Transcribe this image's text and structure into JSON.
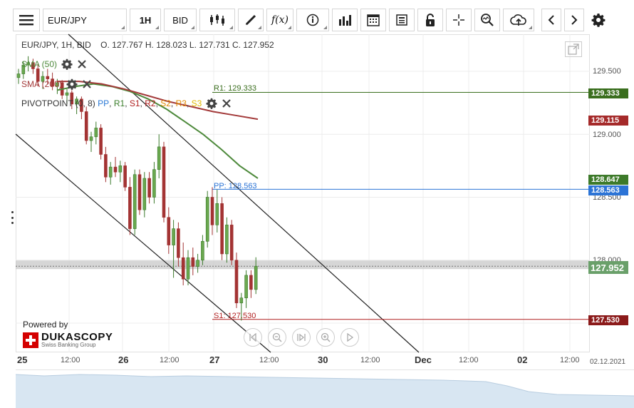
{
  "toolbar": {
    "menu_icon": "hamburger-icon",
    "symbol": "EUR/JPY",
    "timeframe": "1H",
    "price_side": "BID",
    "buttons": [
      "candle-type-icon",
      "pencil-icon",
      "function-icon",
      "info-icon",
      "volume-bars-icon",
      "calendar-icon",
      "report-icon",
      "unlock-icon",
      "crosshair-icon",
      "zoom-search-icon",
      "cloud-upload-icon",
      "chevron-left-icon",
      "chevron-right-icon",
      "gear-icon"
    ],
    "function_label": "f(x)"
  },
  "legend": {
    "ohlc": "EUR/JPY, 1H, BID    O. 127.767 H. 128.023 L. 127.731 C. 127.952",
    "sma50": "SMA (50)",
    "sma200": "SMA (200)",
    "pivot_prefix": "PIVOTPOINT (0, 8)",
    "pivot_items": [
      "PP",
      "R1",
      "S1",
      "R2",
      "S2",
      "R3",
      "S3"
    ]
  },
  "levels": {
    "r1": "R1: 129.333",
    "pp": "PP: 128.563",
    "s1": "S1: 127.530"
  },
  "price_axis": {
    "ticks": [
      "129.500",
      "129.000",
      "128.500",
      "128.000",
      "127.500"
    ],
    "tags": [
      {
        "value": "129.333",
        "color": "#3a6e1e"
      },
      {
        "value": "129.115",
        "color": "#a52a2a"
      },
      {
        "value": "128.647",
        "color": "#3d7a2a"
      },
      {
        "value": "128.563",
        "color": "#2c74d6"
      },
      {
        "value": "127.952",
        "color": "#6aa06a"
      },
      {
        "value": "127.530",
        "color": "#8b1a1a"
      }
    ]
  },
  "time_axis": {
    "labels": [
      "25",
      "12:00",
      "26",
      "12:00",
      "27",
      "12:00",
      "30",
      "12:00",
      "Dec",
      "12:00",
      "02",
      "12:00",
      "02.12.2021"
    ]
  },
  "branding": {
    "powered_by": "Powered by",
    "name": "DUKASCOPY",
    "tagline": "Swiss Banking Group"
  },
  "chart_data": {
    "type": "candlestick",
    "symbol": "EUR/JPY",
    "interval": "1H",
    "side": "BID",
    "ylim": [
      127.3,
      129.85
    ],
    "last": {
      "open": 127.767,
      "high": 128.023,
      "low": 127.731,
      "close": 127.952
    },
    "indicators": {
      "sma50": [
        129.35,
        129.38,
        129.4,
        129.38,
        129.34,
        129.28,
        129.2,
        129.1,
        129.0,
        128.88,
        128.75,
        128.65
      ],
      "sma200": [
        129.42,
        129.42,
        129.4,
        129.36,
        129.31,
        129.26,
        129.22,
        129.18,
        129.15,
        129.12
      ],
      "pivot": {
        "R1": 129.333,
        "PP": 128.563,
        "S1": 127.53
      }
    },
    "candles": [
      {
        "t": "25 08:00",
        "o": 129.45,
        "h": 129.52,
        "l": 129.4,
        "c": 129.48
      },
      {
        "t": "25 09:00",
        "o": 129.48,
        "h": 129.58,
        "l": 129.44,
        "c": 129.55
      },
      {
        "t": "25 10:00",
        "o": 129.55,
        "h": 129.62,
        "l": 129.5,
        "c": 129.57
      },
      {
        "t": "25 11:00",
        "o": 129.57,
        "h": 129.6,
        "l": 129.48,
        "c": 129.52
      },
      {
        "t": "25 12:00",
        "o": 129.52,
        "h": 129.56,
        "l": 129.38,
        "c": 129.42
      },
      {
        "t": "25 13:00",
        "o": 129.42,
        "h": 129.5,
        "l": 129.36,
        "c": 129.46
      },
      {
        "t": "25 14:00",
        "o": 129.46,
        "h": 129.52,
        "l": 129.4,
        "c": 129.44
      },
      {
        "t": "25 15:00",
        "o": 129.44,
        "h": 129.49,
        "l": 129.35,
        "c": 129.38
      },
      {
        "t": "25 16:00",
        "o": 129.38,
        "h": 129.44,
        "l": 129.32,
        "c": 129.41
      },
      {
        "t": "25 17:00",
        "o": 129.41,
        "h": 129.43,
        "l": 129.28,
        "c": 129.31
      },
      {
        "t": "25 18:00",
        "o": 129.31,
        "h": 129.36,
        "l": 129.24,
        "c": 129.33
      },
      {
        "t": "25 19:00",
        "o": 129.33,
        "h": 129.35,
        "l": 129.2,
        "c": 129.24
      },
      {
        "t": "25 20:00",
        "o": 129.24,
        "h": 129.3,
        "l": 129.16,
        "c": 129.28
      },
      {
        "t": "25 21:00",
        "o": 129.28,
        "h": 129.3,
        "l": 129.12,
        "c": 129.18
      },
      {
        "t": "25 22:00",
        "o": 129.18,
        "h": 129.22,
        "l": 128.92,
        "c": 128.95
      },
      {
        "t": "25 23:00",
        "o": 128.95,
        "h": 129.02,
        "l": 128.86,
        "c": 128.98
      },
      {
        "t": "26 00:00",
        "o": 128.98,
        "h": 129.1,
        "l": 128.92,
        "c": 129.05
      },
      {
        "t": "26 01:00",
        "o": 129.05,
        "h": 129.08,
        "l": 128.8,
        "c": 128.84
      },
      {
        "t": "26 02:00",
        "o": 128.84,
        "h": 128.9,
        "l": 128.62,
        "c": 128.66
      },
      {
        "t": "26 03:00",
        "o": 128.66,
        "h": 128.78,
        "l": 128.6,
        "c": 128.74
      },
      {
        "t": "26 04:00",
        "o": 128.74,
        "h": 128.82,
        "l": 128.66,
        "c": 128.7
      },
      {
        "t": "26 05:00",
        "o": 128.7,
        "h": 128.79,
        "l": 128.62,
        "c": 128.75
      },
      {
        "t": "26 06:00",
        "o": 128.75,
        "h": 128.78,
        "l": 128.55,
        "c": 128.58
      },
      {
        "t": "26 07:00",
        "o": 128.58,
        "h": 128.66,
        "l": 128.2,
        "c": 128.25
      },
      {
        "t": "26 08:00",
        "o": 128.25,
        "h": 128.72,
        "l": 128.2,
        "c": 128.68
      },
      {
        "t": "26 09:00",
        "o": 128.68,
        "h": 128.72,
        "l": 128.36,
        "c": 128.4
      },
      {
        "t": "26 10:00",
        "o": 128.4,
        "h": 128.7,
        "l": 128.34,
        "c": 128.65
      },
      {
        "t": "26 11:00",
        "o": 128.65,
        "h": 128.7,
        "l": 128.45,
        "c": 128.5
      },
      {
        "t": "26 12:00",
        "o": 128.5,
        "h": 128.78,
        "l": 128.45,
        "c": 128.72
      },
      {
        "t": "26 13:00",
        "o": 128.72,
        "h": 129.0,
        "l": 128.65,
        "c": 128.9
      },
      {
        "t": "26 14:00",
        "o": 128.9,
        "h": 128.94,
        "l": 128.3,
        "c": 128.34
      },
      {
        "t": "26 15:00",
        "o": 128.34,
        "h": 128.42,
        "l": 128.05,
        "c": 128.12
      },
      {
        "t": "26 16:00",
        "o": 128.12,
        "h": 128.32,
        "l": 127.86,
        "c": 128.25
      },
      {
        "t": "26 17:00",
        "o": 128.25,
        "h": 128.3,
        "l": 127.95,
        "c": 128.02
      },
      {
        "t": "26 18:00",
        "o": 128.02,
        "h": 128.14,
        "l": 127.8,
        "c": 127.85
      },
      {
        "t": "26 19:00",
        "o": 127.85,
        "h": 128.08,
        "l": 127.8,
        "c": 128.02
      },
      {
        "t": "26 20:00",
        "o": 128.02,
        "h": 128.1,
        "l": 127.88,
        "c": 127.95
      },
      {
        "t": "26 21:00",
        "o": 127.95,
        "h": 128.05,
        "l": 127.9,
        "c": 128.0
      },
      {
        "t": "26 22:00",
        "o": 128.0,
        "h": 128.2,
        "l": 127.96,
        "c": 128.15
      },
      {
        "t": "27 00:00",
        "o": 128.15,
        "h": 128.55,
        "l": 128.1,
        "c": 128.5
      },
      {
        "t": "27 01:00",
        "o": 128.5,
        "h": 128.58,
        "l": 128.2,
        "c": 128.28
      },
      {
        "t": "27 02:00",
        "o": 128.28,
        "h": 128.56,
        "l": 128.22,
        "c": 128.45
      },
      {
        "t": "27 03:00",
        "o": 128.45,
        "h": 128.5,
        "l": 128.0,
        "c": 128.05
      },
      {
        "t": "27 04:00",
        "o": 128.05,
        "h": 128.34,
        "l": 127.98,
        "c": 128.28
      },
      {
        "t": "27 05:00",
        "o": 128.28,
        "h": 128.32,
        "l": 127.96,
        "c": 128.0
      },
      {
        "t": "27 06:00",
        "o": 128.0,
        "h": 128.06,
        "l": 127.62,
        "c": 127.66
      },
      {
        "t": "27 07:00",
        "o": 127.66,
        "h": 127.74,
        "l": 127.52,
        "c": 127.7
      },
      {
        "t": "27 08:00",
        "o": 127.7,
        "h": 127.92,
        "l": 127.62,
        "c": 127.88
      },
      {
        "t": "27 09:00",
        "o": 127.88,
        "h": 127.92,
        "l": 127.7,
        "c": 127.767
      },
      {
        "t": "27 10:00",
        "o": 127.767,
        "h": 128.023,
        "l": 127.731,
        "c": 127.952
      }
    ]
  }
}
